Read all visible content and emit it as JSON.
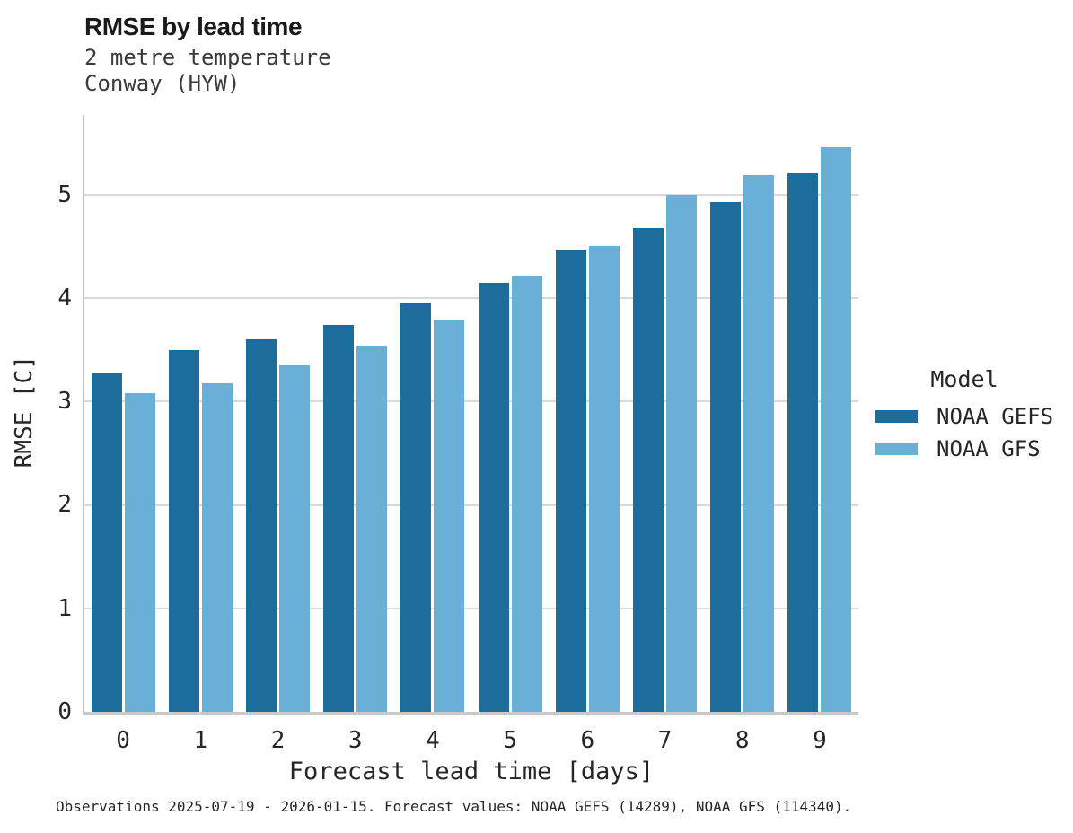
{
  "header": {
    "title": "RMSE by lead time",
    "subtitle": [
      "2 metre temperature",
      "Conway (HYW)"
    ]
  },
  "chart_data": {
    "type": "bar",
    "title": "RMSE by lead time",
    "subtitle": [
      "2 metre temperature",
      "Conway (HYW)"
    ],
    "categories": [
      "0",
      "1",
      "2",
      "3",
      "4",
      "5",
      "6",
      "7",
      "8",
      "9"
    ],
    "series": [
      {
        "name": "NOAA GEFS",
        "color": "#1c6d9c",
        "values": [
          3.27,
          3.5,
          3.6,
          3.74,
          3.95,
          4.15,
          4.47,
          4.68,
          4.93,
          5.21
        ]
      },
      {
        "name": "NOAA GFS",
        "color": "#69afd6",
        "values": [
          3.08,
          3.18,
          3.35,
          3.53,
          3.78,
          4.21,
          4.5,
          5.0,
          5.19,
          5.46
        ]
      }
    ],
    "xlabel": "Forecast lead time [days]",
    "ylabel": "RMSE [C]",
    "ylim": [
      0,
      5.77
    ],
    "yticks": [
      0,
      1,
      2,
      3,
      4,
      5
    ],
    "grid": true,
    "legend_title": "Model",
    "legend_position": "right",
    "colors": {
      "grid": "#d9d9d9",
      "spine": "#c9c9c9",
      "text": "#262626"
    }
  },
  "caption": "Observations 2025-07-19 - 2026-01-15. Forecast values: NOAA GEFS (14289), NOAA GFS (114340)."
}
